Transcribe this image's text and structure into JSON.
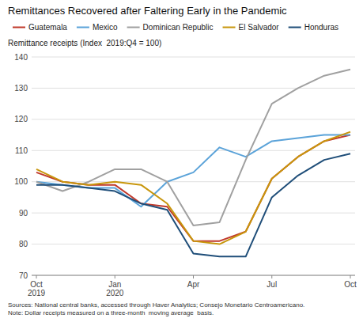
{
  "chart_data": {
    "type": "line",
    "title": "Remittances Recovered after Faltering Early in the Pandemic",
    "y_label": "Remittance receipts (Index  2019:Q4 = 100)",
    "annotations": [
      "Sources: National central banks, accessed through Haver Analytics; Consejo Monetario Centroamericano.",
      "Note: Dollar receipts measured on a three-month  moving average  basis."
    ],
    "categories": [
      "Oct\n2019",
      null,
      null,
      "Jan\n2020",
      null,
      null,
      "Apr",
      null,
      null,
      "Jul",
      null,
      null,
      "Oct"
    ],
    "series": [
      {
        "name": "Guatemala",
        "color": "#c0392b",
        "values": [
          103,
          100,
          99,
          99,
          93,
          92,
          81,
          81,
          84,
          101,
          108,
          113,
          115
        ]
      },
      {
        "name": "Mexico",
        "color": "#5ba3d9",
        "values": [
          100,
          99,
          98,
          98,
          92,
          100,
          103,
          111,
          108,
          113,
          114,
          115,
          115
        ]
      },
      {
        "name": "Dominican Republic",
        "color": "#a0a0a0",
        "values": [
          100,
          97,
          100,
          104,
          104,
          100,
          86,
          87,
          107,
          125,
          130,
          134,
          136
        ]
      },
      {
        "name": "El Salvador",
        "color": "#c8960c",
        "values": [
          104,
          100,
          99,
          100,
          99,
          93,
          81,
          80,
          84,
          101,
          108,
          113,
          116
        ]
      },
      {
        "name": "Honduras",
        "color": "#1f4e79",
        "values": [
          99,
          99,
          98,
          97,
          93,
          91,
          77,
          76,
          76,
          95,
          102,
          107,
          109
        ]
      }
    ],
    "ylim": [
      70,
      140
    ],
    "yticks": [
      70,
      80,
      90,
      100,
      110,
      120,
      130,
      140
    ],
    "grid": true,
    "legend": "upper left"
  }
}
